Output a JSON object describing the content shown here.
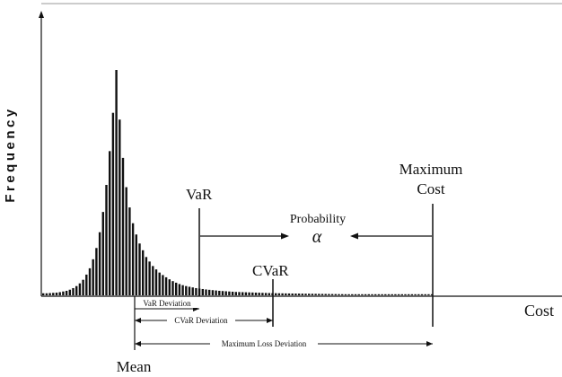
{
  "chart_data": {
    "type": "bar",
    "ylabel": "Frequency",
    "xlabel": "Cost",
    "grid": false,
    "legend": "none",
    "distribution": [
      0.9,
      0.9,
      1.0,
      1.1,
      1.2,
      1.4,
      1.7,
      2.0,
      2.5,
      3.2,
      4.1,
      5.3,
      6.9,
      9.2,
      12,
      16,
      21,
      28,
      37,
      49,
      64,
      81,
      100,
      78,
      61,
      48,
      39,
      32,
      27,
      23,
      20,
      17,
      15,
      13,
      11.5,
      10.1,
      9,
      8,
      7.1,
      6.3,
      5.6,
      5.0,
      4.5,
      4.1,
      3.8,
      3.5,
      3.2,
      3.0,
      2.8,
      2.6,
      2.45,
      2.3,
      2.15,
      2.0,
      1.9,
      1.8,
      1.7,
      1.6,
      1.5,
      1.45,
      1.4,
      1.35,
      1.3,
      1.25,
      1.2,
      1.15,
      1.1,
      1.05,
      1.0,
      0.97,
      0.94,
      0.91,
      0.88,
      0.85,
      0.82,
      0.8,
      0.78,
      0.76,
      0.74,
      0.72,
      0.7,
      0.68,
      0.66,
      0.64,
      0.62,
      0.6,
      0.58,
      0.56,
      0.54,
      0.52,
      0.5,
      0.48,
      0.46,
      0.44,
      0.42,
      0.4,
      0.38,
      0.36,
      0.34,
      0.32,
      0.3,
      0.29,
      0.28,
      0.27,
      0.26,
      0.25,
      0.24,
      0.23,
      0.22,
      0.21,
      0.2,
      0.19,
      0.18,
      0.17,
      0.16,
      0.15,
      0.14,
      0.13
    ],
    "markers": {
      "mean": "Mean",
      "var": "VaR",
      "cvar": "CVaR",
      "maximum_cost_line1": "Maximum",
      "maximum_cost_line2": "Cost"
    },
    "annotations": {
      "probability": "Probability",
      "alpha": "α",
      "var_deviation": "VaR Deviation",
      "cvar_deviation": "CVaR Deviation",
      "max_loss_deviation": "Maximum Loss  Deviation"
    }
  },
  "colors": {
    "bars": "#111111",
    "axis": "#111111",
    "frame": "#999999",
    "text": "#111111"
  }
}
